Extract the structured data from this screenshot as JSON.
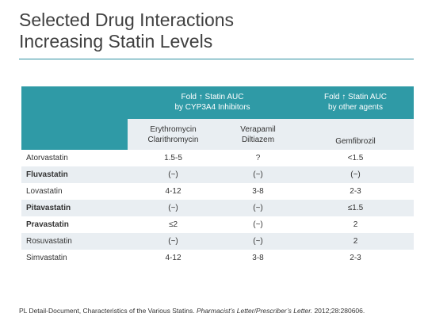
{
  "slide": {
    "title_line1": "Selected Drug Interactions",
    "title_line2": "Increasing Statin Levels"
  },
  "table": {
    "group_headers": {
      "cyp3a4_line1": "Fold ↑ Statin AUC",
      "cyp3a4_line2": "by CYP3A4 Inhibitors",
      "other_line1": "Fold ↑ Statin AUC",
      "other_line2": "by other agents"
    },
    "column_headers": {
      "col1_line1": "Erythromycin",
      "col1_line2": "Clarithromycin",
      "col2_line1": "Verapamil",
      "col2_line2": "Diltiazem",
      "col3": "Gemfibrozil"
    },
    "rows": [
      {
        "drug": "Atorvastatin",
        "bold": false,
        "ery": "1.5-5",
        "vera": "?",
        "gem": "<1.5"
      },
      {
        "drug": "Fluvastatin",
        "bold": true,
        "ery": "(~)",
        "vera": "(~)",
        "gem": "(~)"
      },
      {
        "drug": "Lovastatin",
        "bold": false,
        "ery": "4-12",
        "vera": "3-8",
        "gem": "2-3"
      },
      {
        "drug": "Pitavastatin",
        "bold": true,
        "ery": "(~)",
        "vera": "(~)",
        "gem": "≤1.5"
      },
      {
        "drug": "Pravastatin",
        "bold": true,
        "ery": "≤2",
        "vera": "(~)",
        "gem": "2"
      },
      {
        "drug": "Rosuvastatin",
        "bold": false,
        "ery": "(~)",
        "vera": "(~)",
        "gem": "2"
      },
      {
        "drug": "Simvastatin",
        "bold": false,
        "ery": "4-12",
        "vera": "3-8",
        "gem": "2-3"
      }
    ]
  },
  "citation": {
    "text": "PL Detail-Document, Characteristics of the Various Statins. ",
    "journal": "Pharmacist’s Letter/Prescriber’s Letter.",
    "ref": " 2012;28:280606."
  },
  "colors": {
    "header_teal": "#2f9aa6",
    "row_shade": "#e9eef2",
    "rule": "#2b8fa0"
  }
}
